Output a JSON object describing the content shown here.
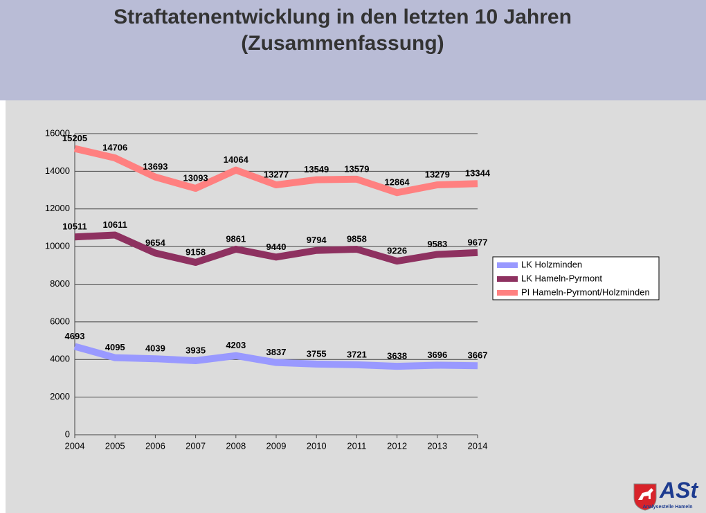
{
  "chart_data": {
    "type": "line",
    "title": "Straftatenentwicklung in den letzten 10 Jahren (Zusammenfassung)",
    "categories": [
      "2004",
      "2005",
      "2006",
      "2007",
      "2008",
      "2009",
      "2010",
      "2011",
      "2012",
      "2013",
      "2014"
    ],
    "series": [
      {
        "name": "LK Holzminden",
        "color": "#9999ff",
        "values": [
          4693,
          4095,
          4039,
          3935,
          4203,
          3837,
          3755,
          3721,
          3638,
          3696,
          3667
        ]
      },
      {
        "name": "LK Hameln-Pyrmont",
        "color": "#8e3160",
        "values": [
          10511,
          10611,
          9654,
          9158,
          9861,
          9440,
          9794,
          9858,
          9226,
          9583,
          9677
        ]
      },
      {
        "name": "PI Hameln-Pyrmont/Holzminden",
        "color": "#ff8080",
        "values": [
          15205,
          14706,
          13693,
          13093,
          14064,
          13277,
          13549,
          13579,
          12864,
          13279,
          13344
        ]
      }
    ],
    "ylim": [
      0,
      16000
    ],
    "yticks": [
      0,
      2000,
      4000,
      6000,
      8000,
      10000,
      12000,
      14000,
      16000
    ],
    "grid": true,
    "legend": "right"
  },
  "logo": {
    "name": "ASt",
    "subtitle": "Analysestelle Hameln"
  }
}
